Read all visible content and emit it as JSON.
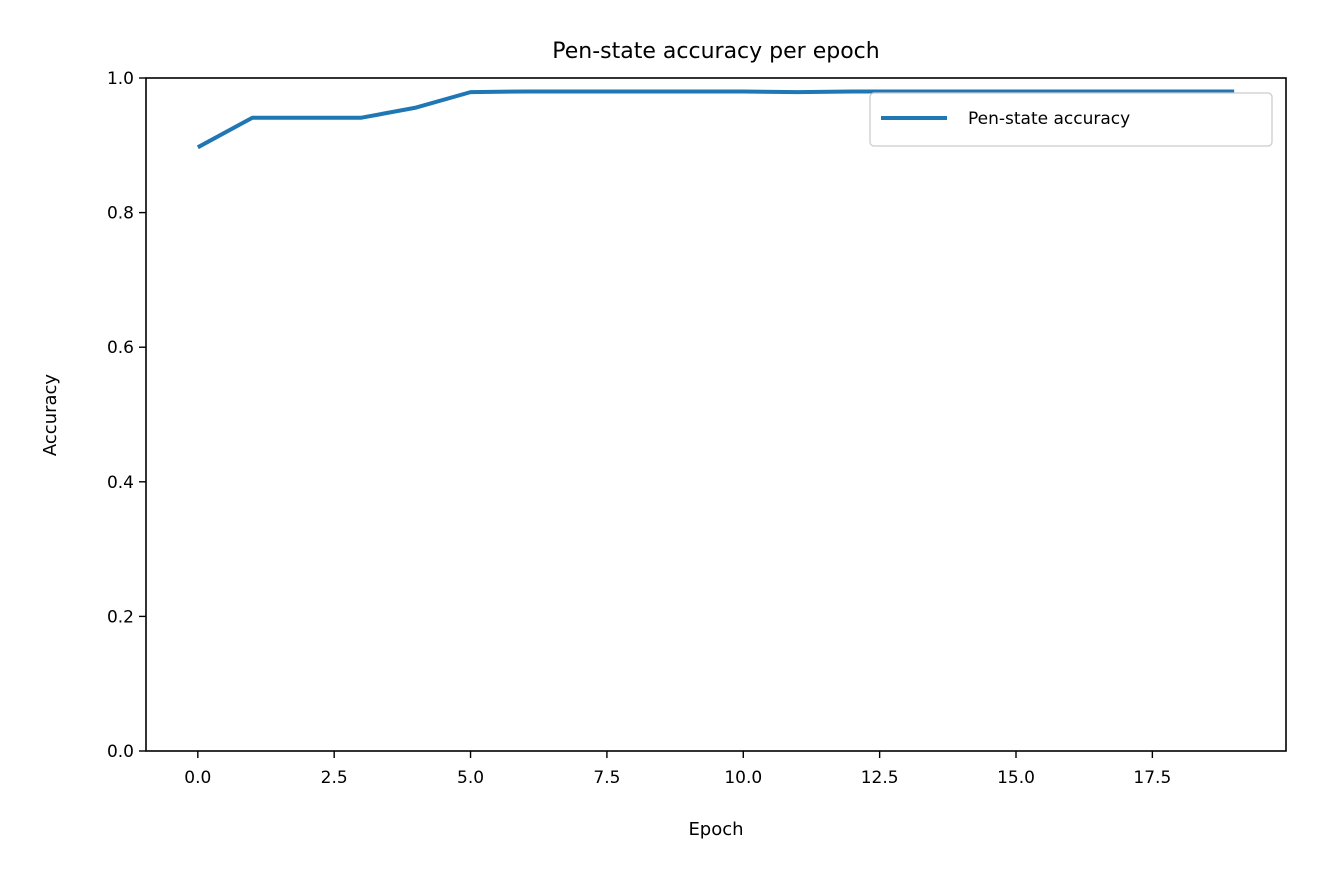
{
  "chart_data": {
    "type": "line",
    "title": "Pen-state accuracy per epoch",
    "xlabel": "Epoch",
    "ylabel": "Accuracy",
    "xlim": [
      -0.95,
      19.95
    ],
    "ylim": [
      0.0,
      1.0
    ],
    "x_ticks": [
      0.0,
      2.5,
      5.0,
      7.5,
      10.0,
      12.5,
      15.0,
      17.5
    ],
    "x_tick_labels": [
      "0.0",
      "2.5",
      "5.0",
      "7.5",
      "10.0",
      "12.5",
      "15.0",
      "17.5"
    ],
    "y_ticks": [
      0.0,
      0.2,
      0.4,
      0.6,
      0.8,
      1.0
    ],
    "y_tick_labels": [
      "0.0",
      "0.2",
      "0.4",
      "0.6",
      "0.8",
      "1.0"
    ],
    "grid": false,
    "legend_position": "top-right",
    "series": [
      {
        "name": "Pen-state accuracy",
        "color": "#1f77b4",
        "x": [
          0,
          1,
          2,
          3,
          4,
          5,
          6,
          7,
          8,
          9,
          10,
          11,
          12,
          13,
          14,
          15,
          16,
          17,
          18,
          19
        ],
        "y": [
          0.897,
          0.941,
          0.941,
          0.941,
          0.956,
          0.979,
          0.98,
          0.98,
          0.98,
          0.98,
          0.98,
          0.979,
          0.98,
          0.98,
          0.98,
          0.98,
          0.98,
          0.98,
          0.98,
          0.98
        ]
      }
    ]
  }
}
